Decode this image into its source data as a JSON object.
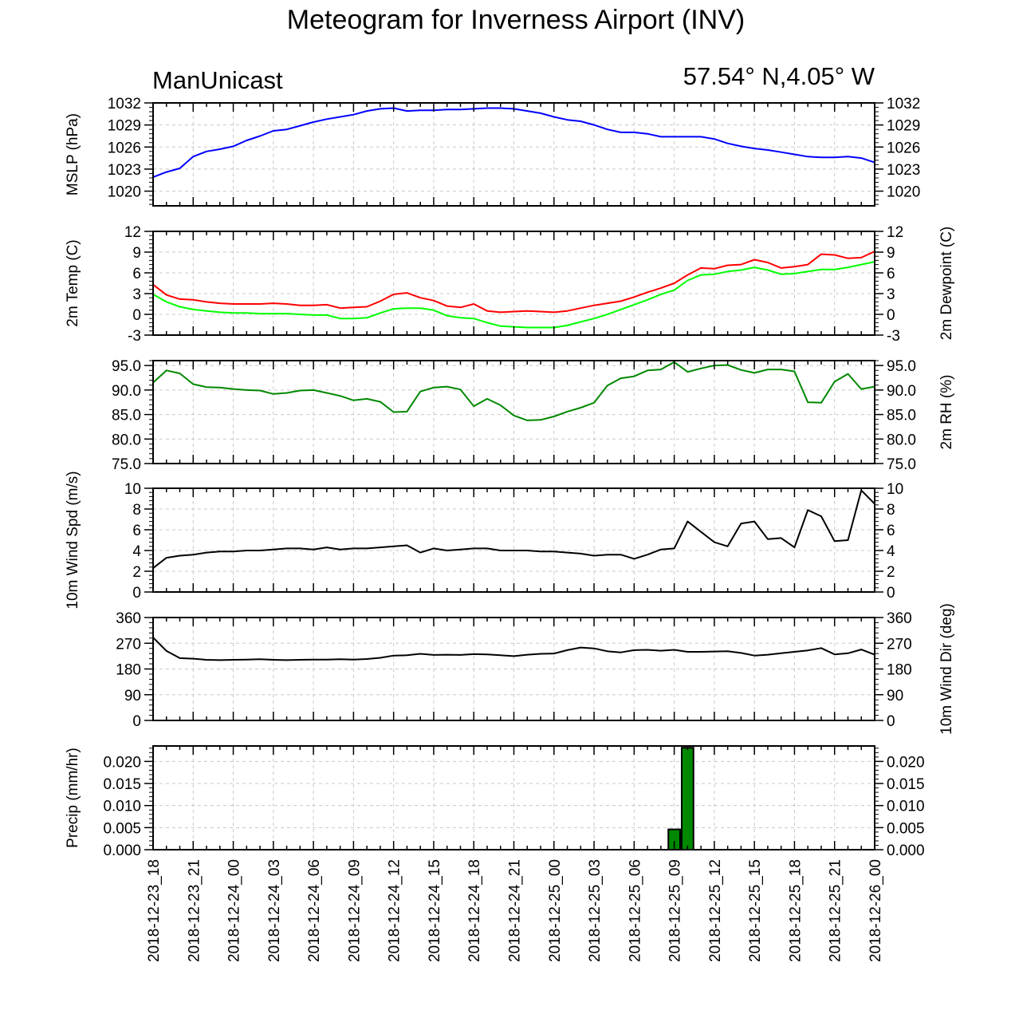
{
  "header": {
    "title": "Meteogram for Inverness Airport (INV)",
    "model": "ManUnicast",
    "location": "57.54° N,4.05° W"
  },
  "chart_data": {
    "type": "line",
    "x_tick_labels": [
      "2018-12-23_18",
      "2018-12-23_21",
      "2018-12-24_00",
      "2018-12-24_03",
      "2018-12-24_06",
      "2018-12-24_09",
      "2018-12-24_12",
      "2018-12-24_15",
      "2018-12-24_18",
      "2018-12-24_21",
      "2018-12-25_00",
      "2018-12-25_03",
      "2018-12-25_06",
      "2018-12-25_09",
      "2018-12-25_12",
      "2018-12-25_15",
      "2018-12-25_18",
      "2018-12-25_21",
      "2018-12-26_00"
    ],
    "x_hours": [
      0,
      1,
      2,
      3,
      4,
      5,
      6,
      7,
      8,
      9,
      10,
      11,
      12,
      13,
      14,
      15,
      16,
      17,
      18,
      19,
      20,
      21,
      22,
      23,
      24,
      25,
      26,
      27,
      28,
      29,
      30,
      31,
      32,
      33,
      34,
      35,
      36,
      37,
      38,
      39,
      40,
      41,
      42,
      43,
      44,
      45,
      46,
      47,
      48,
      49,
      50,
      51,
      52,
      53,
      54
    ],
    "grid": true,
    "panels": [
      {
        "id": "mslp",
        "type": "line",
        "ylabel_left": "MSLP (hPa)",
        "ylabel_right": "",
        "ylim": [
          1018,
          1032
        ],
        "yticks": [
          1020,
          1023,
          1026,
          1029,
          1032
        ],
        "tick_labels": [
          "1020",
          "1023",
          "1026",
          "1029",
          "1032"
        ],
        "series": [
          {
            "color": "#0000ff",
            "values": [
              1021.9,
              1022.6,
              1023.1,
              1024.7,
              1025.4,
              1025.7,
              1026.1,
              1026.9,
              1027.5,
              1028.2,
              1028.4,
              1028.9,
              1029.4,
              1029.8,
              1030.1,
              1030.4,
              1030.9,
              1031.2,
              1031.3,
              1030.9,
              1031.0,
              1031.0,
              1031.1,
              1031.1,
              1031.2,
              1031.3,
              1031.3,
              1031.2,
              1030.9,
              1030.6,
              1030.1,
              1029.7,
              1029.5,
              1029.0,
              1028.4,
              1028.0,
              1028.0,
              1027.8,
              1027.4,
              1027.4,
              1027.4,
              1027.4,
              1027.1,
              1026.5,
              1026.1,
              1025.8,
              1025.6,
              1025.3,
              1025.0,
              1024.7,
              1024.6,
              1024.6,
              1024.7,
              1024.5,
              1023.9
            ]
          }
        ]
      },
      {
        "id": "temp",
        "type": "line",
        "ylabel_left": "2m Temp (C)",
        "ylabel_right": "2m Dewpoint (C)",
        "ylim": [
          -3,
          12
        ],
        "yticks": [
          -3,
          0,
          3,
          6,
          9,
          12
        ],
        "tick_labels": [
          "-3",
          "0",
          "3",
          "6",
          "9",
          "12"
        ],
        "series": [
          {
            "color": "#ff0000",
            "values": [
              4.3,
              2.8,
              2.2,
              2.1,
              1.8,
              1.6,
              1.5,
              1.5,
              1.5,
              1.6,
              1.5,
              1.3,
              1.3,
              1.4,
              0.9,
              1.0,
              1.1,
              1.9,
              2.9,
              3.1,
              2.4,
              2.0,
              1.2,
              1.0,
              1.5,
              0.5,
              0.3,
              0.4,
              0.5,
              0.4,
              0.3,
              0.5,
              0.9,
              1.3,
              1.6,
              1.9,
              2.5,
              3.2,
              3.8,
              4.5,
              5.7,
              6.7,
              6.6,
              7.1,
              7.2,
              7.9,
              7.5,
              6.7,
              6.9,
              7.2,
              8.7,
              8.6,
              8.1,
              8.2,
              9.1
            ]
          },
          {
            "color": "#00ff00",
            "values": [
              2.9,
              1.8,
              1.1,
              0.7,
              0.5,
              0.3,
              0.2,
              0.2,
              0.1,
              0.1,
              0.1,
              0.0,
              -0.1,
              -0.1,
              -0.6,
              -0.6,
              -0.5,
              0.2,
              0.8,
              0.9,
              0.9,
              0.6,
              -0.2,
              -0.5,
              -0.6,
              -1.2,
              -1.7,
              -1.8,
              -1.9,
              -1.9,
              -1.9,
              -1.6,
              -1.1,
              -0.6,
              0.0,
              0.7,
              1.4,
              2.1,
              2.9,
              3.5,
              4.9,
              5.7,
              5.8,
              6.2,
              6.4,
              6.8,
              6.4,
              5.8,
              5.9,
              6.2,
              6.5,
              6.5,
              6.8,
              7.2,
              7.6
            ]
          }
        ]
      },
      {
        "id": "rh",
        "type": "line",
        "ylabel_left": "",
        "ylabel_right": "2m RH (%)",
        "ylim": [
          75,
          96
        ],
        "yticks": [
          75,
          80,
          85,
          90,
          95
        ],
        "tick_labels": [
          "75.0",
          "80.0",
          "85.0",
          "90.0",
          "95.0"
        ],
        "series": [
          {
            "color": "#008800",
            "values": [
              91.5,
              94.0,
              93.4,
              91.2,
              90.6,
              90.5,
              90.2,
              90.0,
              89.9,
              89.2,
              89.4,
              89.9,
              90.0,
              89.4,
              88.8,
              87.9,
              88.2,
              87.6,
              85.5,
              85.6,
              89.7,
              90.5,
              90.7,
              90.1,
              86.7,
              88.2,
              86.9,
              84.8,
              83.8,
              83.9,
              84.6,
              85.6,
              86.4,
              87.4,
              90.9,
              92.4,
              92.8,
              94.0,
              94.2,
              95.7,
              93.7,
              94.4,
              95.0,
              95.1,
              94.1,
              93.5,
              94.2,
              94.2,
              93.8,
              87.5,
              87.4,
              91.7,
              93.3,
              90.2,
              90.7
            ]
          }
        ]
      },
      {
        "id": "wspd",
        "type": "line",
        "ylabel_left": "10m Wind Spd (m/s)",
        "ylabel_right": "",
        "ylim": [
          0,
          10
        ],
        "yticks": [
          0,
          2,
          4,
          6,
          8,
          10
        ],
        "tick_labels": [
          "0",
          "2",
          "4",
          "6",
          "8",
          "10"
        ],
        "series": [
          {
            "color": "#000000",
            "values": [
              2.3,
              3.3,
              3.5,
              3.6,
              3.8,
              3.9,
              3.9,
              4.0,
              4.0,
              4.1,
              4.2,
              4.2,
              4.1,
              4.3,
              4.1,
              4.2,
              4.2,
              4.3,
              4.4,
              4.5,
              3.8,
              4.2,
              4.0,
              4.1,
              4.2,
              4.2,
              4.0,
              4.0,
              4.0,
              3.9,
              3.9,
              3.8,
              3.7,
              3.5,
              3.6,
              3.6,
              3.2,
              3.6,
              4.1,
              4.2,
              6.8,
              5.8,
              4.8,
              4.4,
              6.6,
              6.8,
              5.1,
              5.2,
              4.3,
              7.9,
              7.3,
              4.9,
              5.0,
              9.8,
              8.5
            ]
          }
        ]
      },
      {
        "id": "wdir",
        "type": "line",
        "ylabel_left": "",
        "ylabel_right": "10m Wind Dir (deg)",
        "ylim": [
          0,
          360
        ],
        "yticks": [
          0,
          90,
          180,
          270,
          360
        ],
        "tick_labels": [
          "0",
          "90",
          "180",
          "270",
          "360"
        ],
        "series": [
          {
            "color": "#000000",
            "values": [
              290,
              243,
              218,
              216,
              212,
              211,
              212,
              213,
              214,
              212,
              211,
              212,
              213,
              213,
              214,
              213,
              215,
              219,
              227,
              228,
              233,
              229,
              230,
              229,
              232,
              231,
              228,
              225,
              230,
              233,
              234,
              246,
              255,
              252,
              242,
              238,
              246,
              247,
              244,
              247,
              240,
              240,
              241,
              242,
              236,
              227,
              230,
              235,
              240,
              245,
              253,
              231,
              235,
              248,
              230
            ]
          }
        ]
      },
      {
        "id": "precip",
        "type": "bar",
        "ylabel_left": "Precip (mm/hr)",
        "ylabel_right": "",
        "ylim": [
          0,
          0.0235
        ],
        "yticks": [
          0.0,
          0.005,
          0.01,
          0.015,
          0.02
        ],
        "tick_labels": [
          "0.000",
          "0.005",
          "0.010",
          "0.015",
          "0.020"
        ],
        "bar_color": "#008800",
        "bars": [
          {
            "x": 39,
            "value": 0.0046
          },
          {
            "x": 40,
            "value": 0.0231
          }
        ]
      }
    ]
  }
}
